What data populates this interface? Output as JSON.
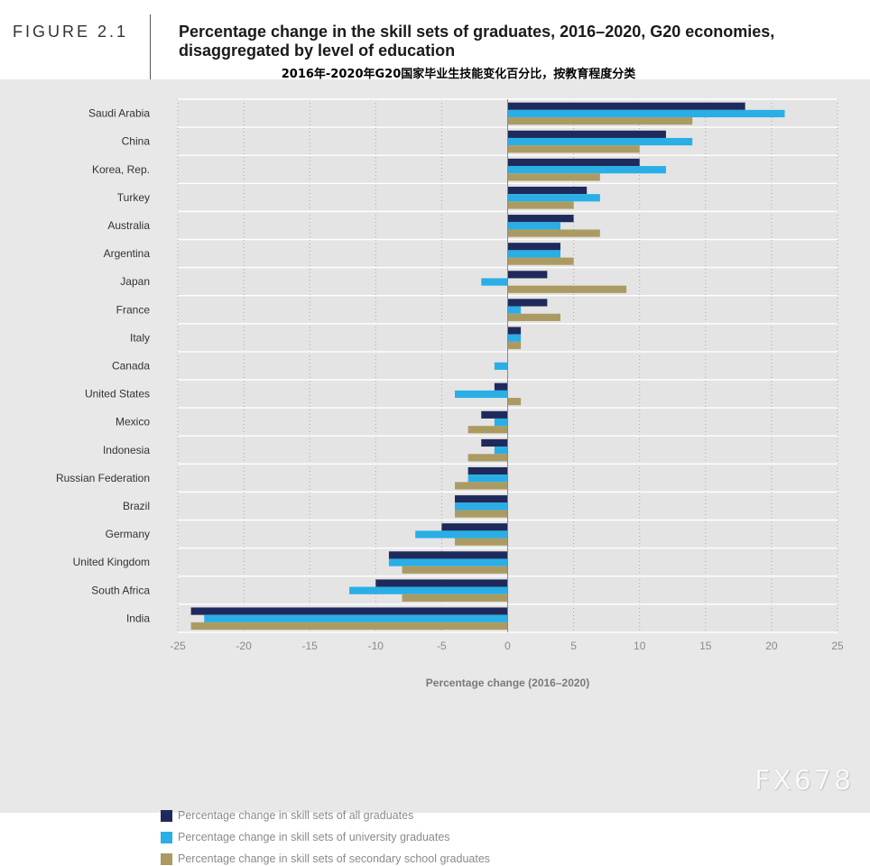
{
  "header": {
    "figure_label": "FIGURE 2.1",
    "title": "Percentage change in the skill sets of graduates, 2016–2020, G20 economies, disaggregated by level of education",
    "subtitle": "2016年-2020年G20国家毕业生技能变化百分比，按教育程度分类"
  },
  "watermark": "FX678",
  "colors": {
    "all_graduates": "#1f2a5c",
    "university": "#2aaee6",
    "secondary": "#ab9b63",
    "background": "#e8e8e8",
    "grid": "#b5b5b5"
  },
  "chart_data": {
    "type": "bar",
    "orientation": "horizontal",
    "categories": [
      "Saudi Arabia",
      "China",
      "Korea, Rep.",
      "Turkey",
      "Australia",
      "Argentina",
      "Japan",
      "France",
      "Italy",
      "Canada",
      "United States",
      "Mexico",
      "Indonesia",
      "Russian Federation",
      "Brazil",
      "Germany",
      "United Kingdom",
      "South Africa",
      "India"
    ],
    "series": [
      {
        "name": "Percentage change in skill sets of all graduates",
        "values": [
          18,
          12,
          10,
          6,
          5,
          4,
          3,
          3,
          1,
          0,
          -1,
          -2,
          -2,
          -3,
          -4,
          -5,
          -9,
          -10,
          -24
        ]
      },
      {
        "name": "Percentage change in skill sets of university graduates",
        "values": [
          21,
          14,
          12,
          7,
          4,
          4,
          -2,
          1,
          1,
          -1,
          -4,
          -1,
          -1,
          -3,
          -4,
          -7,
          -9,
          -12,
          -23
        ]
      },
      {
        "name": "Percentage change in skill sets of secondary school graduates",
        "values": [
          14,
          10,
          7,
          5,
          7,
          5,
          9,
          4,
          1,
          0,
          1,
          -3,
          -3,
          -4,
          -4,
          -4,
          -8,
          -8,
          -24
        ]
      }
    ],
    "xlabel": "Percentage change (2016–2020)",
    "ylabel": "",
    "xlim": [
      -25,
      25
    ],
    "xticks": [
      -25,
      -20,
      -15,
      -10,
      -5,
      0,
      5,
      10,
      15,
      20,
      25
    ],
    "xtick_labels": [
      "-25",
      "-20",
      "-15",
      "-10",
      "-5",
      "0",
      "5",
      "10",
      "15",
      "20",
      "25"
    ],
    "grid": true,
    "legend_position": "bottom-left"
  }
}
